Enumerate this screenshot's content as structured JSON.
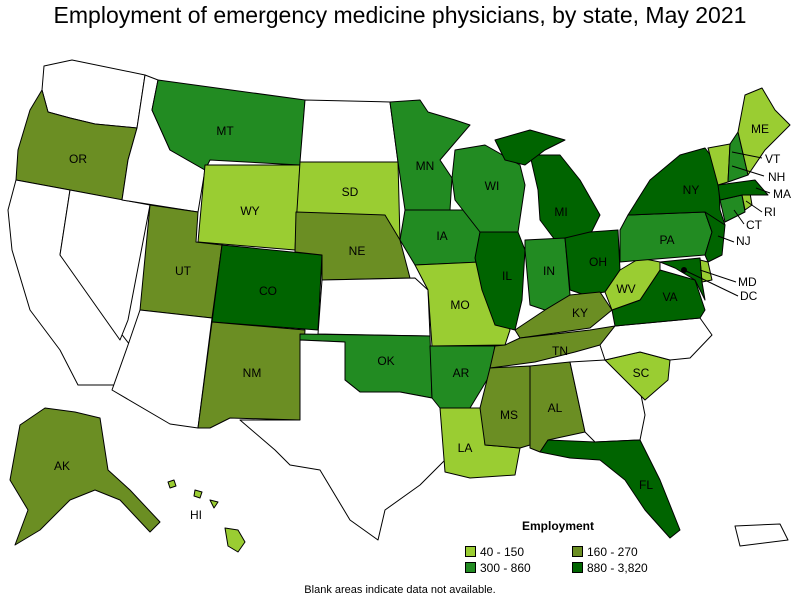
{
  "title": "Employment of emergency medicine physicians, by state, May 2021",
  "legend": {
    "title": "Employment",
    "items": [
      {
        "label": "40 - 150",
        "color": "#9acd32"
      },
      {
        "label": "160 - 270",
        "color": "#6b8e23"
      },
      {
        "label": "300 - 860",
        "color": "#228b22"
      },
      {
        "label": "880 - 3,820",
        "color": "#006400"
      }
    ]
  },
  "footnote": "Blank areas indicate data not available.",
  "states": {
    "WA": {
      "label": "",
      "color": "#ffffff"
    },
    "OR": {
      "label": "OR",
      "color": "#6b8e23"
    },
    "CA": {
      "label": "",
      "color": "#ffffff"
    },
    "NV": {
      "label": "",
      "color": "#ffffff"
    },
    "ID": {
      "label": "",
      "color": "#ffffff"
    },
    "MT": {
      "label": "MT",
      "color": "#228b22"
    },
    "WY": {
      "label": "WY",
      "color": "#9acd32"
    },
    "UT": {
      "label": "UT",
      "color": "#6b8e23"
    },
    "AZ": {
      "label": "",
      "color": "#ffffff"
    },
    "CO": {
      "label": "CO",
      "color": "#006400"
    },
    "NM": {
      "label": "NM",
      "color": "#6b8e23"
    },
    "ND": {
      "label": "",
      "color": "#ffffff"
    },
    "SD": {
      "label": "SD",
      "color": "#9acd32"
    },
    "NE": {
      "label": "NE",
      "color": "#6b8e23"
    },
    "KS": {
      "label": "",
      "color": "#ffffff"
    },
    "OK": {
      "label": "OK",
      "color": "#228b22"
    },
    "TX": {
      "label": "",
      "color": "#ffffff"
    },
    "MN": {
      "label": "MN",
      "color": "#228b22"
    },
    "IA": {
      "label": "IA",
      "color": "#228b22"
    },
    "MO": {
      "label": "MO",
      "color": "#9acd32"
    },
    "AR": {
      "label": "AR",
      "color": "#228b22"
    },
    "LA": {
      "label": "LA",
      "color": "#9acd32"
    },
    "WI": {
      "label": "WI",
      "color": "#228b22"
    },
    "IL": {
      "label": "IL",
      "color": "#006400"
    },
    "MI": {
      "label": "MI",
      "color": "#006400"
    },
    "IN": {
      "label": "IN",
      "color": "#228b22"
    },
    "OH": {
      "label": "OH",
      "color": "#006400"
    },
    "KY": {
      "label": "KY",
      "color": "#6b8e23"
    },
    "TN": {
      "label": "TN",
      "color": "#6b8e23"
    },
    "MS": {
      "label": "MS",
      "color": "#6b8e23"
    },
    "AL": {
      "label": "AL",
      "color": "#6b8e23"
    },
    "GA": {
      "label": "",
      "color": "#ffffff"
    },
    "FL": {
      "label": "FL",
      "color": "#006400"
    },
    "SC": {
      "label": "SC",
      "color": "#9acd32"
    },
    "NC": {
      "label": "",
      "color": "#ffffff"
    },
    "VA": {
      "label": "VA",
      "color": "#006400"
    },
    "WV": {
      "label": "WV",
      "color": "#9acd32"
    },
    "PA": {
      "label": "PA",
      "color": "#228b22"
    },
    "NY": {
      "label": "NY",
      "color": "#006400"
    },
    "NJ": {
      "label": "NJ",
      "color": "#006400"
    },
    "DE": {
      "label": "",
      "color": "#9acd32"
    },
    "MD": {
      "label": "MD",
      "color": "#006400"
    },
    "DC": {
      "label": "DC",
      "color": "#006400"
    },
    "CT": {
      "label": "CT",
      "color": "#228b22"
    },
    "RI": {
      "label": "RI",
      "color": "#9acd32"
    },
    "MA": {
      "label": "MA",
      "color": "#006400"
    },
    "VT": {
      "label": "VT",
      "color": "#9acd32"
    },
    "NH": {
      "label": "NH",
      "color": "#228b22"
    },
    "ME": {
      "label": "ME",
      "color": "#9acd32"
    },
    "AK": {
      "label": "AK",
      "color": "#6b8e23"
    },
    "HI": {
      "label": "HI",
      "color": "#9acd32"
    },
    "PR": {
      "label": "",
      "color": "#ffffff"
    }
  }
}
